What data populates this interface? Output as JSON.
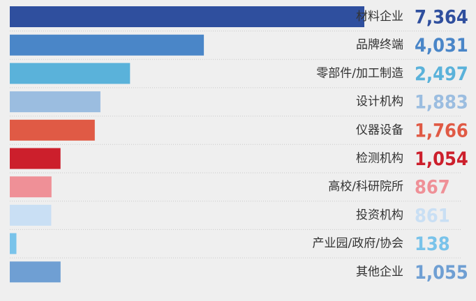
{
  "chart_data": {
    "type": "bar",
    "orientation": "horizontal",
    "categories": [
      "材料企业",
      "品牌终端",
      "零部件/加工制造",
      "设计机构",
      "仪器设备",
      "检测机构",
      "高校/科研院所",
      "投资机构",
      "产业园/政府/协会",
      "其他企业"
    ],
    "values": [
      7364,
      4031,
      2497,
      1883,
      1766,
      1054,
      867,
      861,
      138,
      1055
    ],
    "value_labels": [
      "7,364",
      "4,031",
      "2,497",
      "1,883",
      "1,766",
      "1,054",
      "867",
      "861",
      "138",
      "1,055"
    ],
    "colors": [
      "#2f4f9e",
      "#4a86c8",
      "#5ab2da",
      "#9bbde0",
      "#e05a45",
      "#cc1f2c",
      "#ef9097",
      "#c9dff4",
      "#79c3ea",
      "#6f9fd3"
    ],
    "grid": false,
    "legend": "none"
  }
}
